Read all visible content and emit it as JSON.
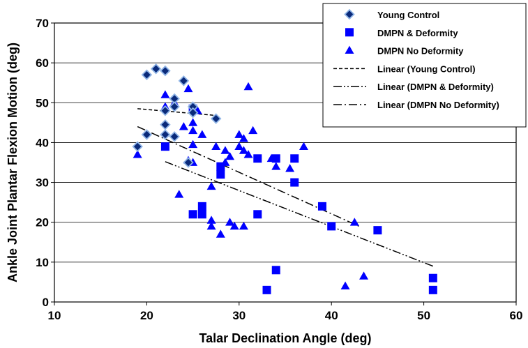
{
  "chart_data": {
    "type": "scatter",
    "xlabel": "Talar Declination Angle (deg)",
    "ylabel": "Ankle Joint Plantar Flexion Motion (deg)",
    "xlim": [
      10,
      60
    ],
    "ylim": [
      0,
      70
    ],
    "xticks": [
      10,
      20,
      30,
      40,
      50,
      60
    ],
    "yticks": [
      0,
      10,
      20,
      30,
      40,
      50,
      60,
      70
    ],
    "grid": "horizontal",
    "legend_position": "top-right",
    "series": [
      {
        "name": "Young Control",
        "marker": "diamond",
        "color": "#0a2a7a",
        "edge": "#8fb4e6",
        "points": [
          [
            19,
            39
          ],
          [
            20,
            57
          ],
          [
            20,
            42
          ],
          [
            21,
            58.5
          ],
          [
            22,
            58
          ],
          [
            22,
            48
          ],
          [
            22,
            44.5
          ],
          [
            22,
            42
          ],
          [
            23,
            51
          ],
          [
            23,
            49
          ],
          [
            23,
            41.5
          ],
          [
            24,
            55.5
          ],
          [
            24.5,
            35
          ],
          [
            25,
            49
          ],
          [
            25,
            47.5
          ],
          [
            27.5,
            46
          ]
        ]
      },
      {
        "name": "DMPN & Deformity",
        "marker": "square",
        "color": "#0000ff",
        "points": [
          [
            22,
            39
          ],
          [
            25,
            48.5
          ],
          [
            25,
            22
          ],
          [
            26,
            22
          ],
          [
            26,
            24
          ],
          [
            28,
            34
          ],
          [
            28,
            32
          ],
          [
            32,
            36
          ],
          [
            32,
            22
          ],
          [
            33,
            3
          ],
          [
            34,
            36
          ],
          [
            34,
            8
          ],
          [
            36,
            36
          ],
          [
            36,
            30
          ],
          [
            39,
            24
          ],
          [
            40,
            19
          ],
          [
            45,
            18
          ],
          [
            51,
            6
          ],
          [
            51,
            3
          ]
        ]
      },
      {
        "name": "DMPN No Deformity",
        "marker": "triangle",
        "color": "#0000ff",
        "points": [
          [
            19,
            37
          ],
          [
            22,
            52
          ],
          [
            22,
            49
          ],
          [
            23,
            50
          ],
          [
            24,
            44
          ],
          [
            24.5,
            53.5
          ],
          [
            24.5,
            35.5
          ],
          [
            25,
            45
          ],
          [
            25,
            43
          ],
          [
            25,
            39.5
          ],
          [
            25,
            35
          ],
          [
            25.5,
            48
          ],
          [
            26,
            42
          ],
          [
            23.5,
            27
          ],
          [
            27,
            29
          ],
          [
            27,
            20.5
          ],
          [
            27,
            19
          ],
          [
            27.5,
            39
          ],
          [
            28,
            17
          ],
          [
            28.5,
            38
          ],
          [
            28.5,
            35
          ],
          [
            29,
            36.5
          ],
          [
            29,
            20
          ],
          [
            29.5,
            19
          ],
          [
            30,
            42
          ],
          [
            30,
            39
          ],
          [
            30.5,
            41
          ],
          [
            30.5,
            38
          ],
          [
            30.5,
            19
          ],
          [
            31,
            54
          ],
          [
            31,
            37
          ],
          [
            31.5,
            43
          ],
          [
            33.5,
            36
          ],
          [
            34,
            34
          ],
          [
            35.5,
            33.5
          ],
          [
            37,
            39
          ],
          [
            41.5,
            4
          ],
          [
            42.5,
            20
          ],
          [
            43.5,
            6.5
          ]
        ]
      }
    ],
    "trendlines": [
      {
        "name": "Linear (Young Control)",
        "dash": "dash",
        "x": [
          19,
          27.5
        ],
        "y": [
          48.5,
          46.8
        ]
      },
      {
        "name": "Linear (DMPN & Deformity)",
        "dash": "long-dash-dot-dot",
        "x": [
          22,
          51.2
        ],
        "y": [
          35.2,
          8.8
        ]
      },
      {
        "name": "Linear (DMPN No Deformity)",
        "dash": "long-dash-dot",
        "x": [
          19,
          43
        ],
        "y": [
          44,
          19
        ]
      }
    ]
  }
}
